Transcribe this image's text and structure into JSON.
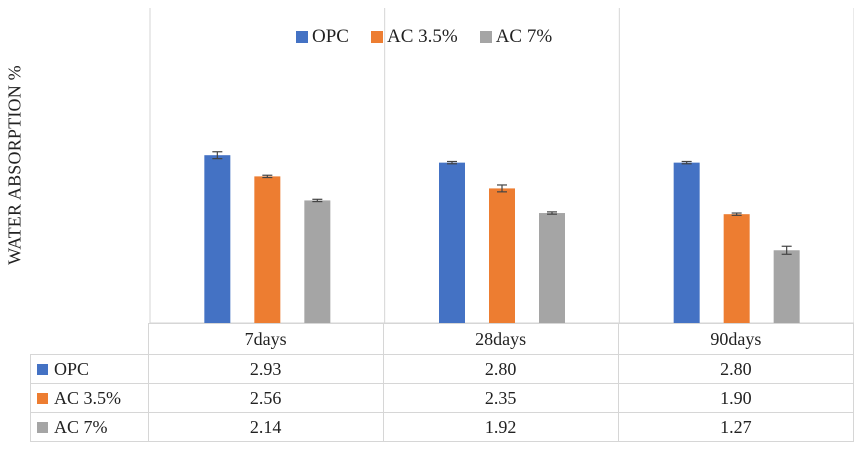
{
  "chart_data": {
    "type": "bar",
    "title": "",
    "ylabel": "WATER ABSORPTION  %",
    "xlabel": "",
    "ylim": [
      0,
      5.5
    ],
    "grid": false,
    "legend_position": "top",
    "categories": [
      "7days",
      "28days",
      "90days"
    ],
    "series": [
      {
        "name": "OPC",
        "color": "#4472C4",
        "values": [
          2.93,
          2.8,
          2.8
        ],
        "values_text": [
          "2.93",
          "2.80",
          "2.80"
        ],
        "errors": [
          0.06,
          0.02,
          0.02
        ]
      },
      {
        "name": "AC 3.5%",
        "color": "#ED7D31",
        "values": [
          2.56,
          2.35,
          1.9
        ],
        "values_text": [
          "2.56",
          "2.35",
          "1.90"
        ],
        "errors": [
          0.02,
          0.06,
          0.02
        ]
      },
      {
        "name": "AC 7%",
        "color": "#A5A5A5",
        "values": [
          2.14,
          1.92,
          1.27
        ],
        "values_text": [
          "2.14",
          "1.92",
          "1.27"
        ],
        "errors": [
          0.02,
          0.02,
          0.07
        ]
      }
    ],
    "data_table": true
  }
}
